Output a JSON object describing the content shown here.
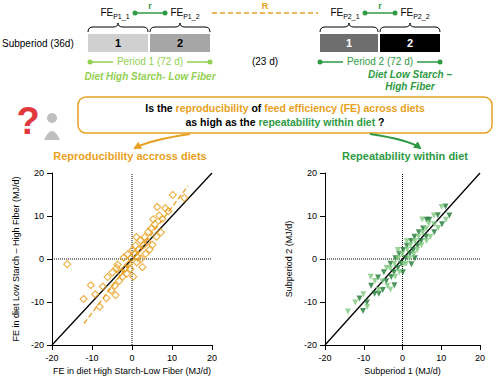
{
  "diagram": {
    "fe_labels": [
      {
        "main": "FE",
        "sub": "P1_1"
      },
      {
        "main": "FE",
        "sub": "P1_2"
      },
      {
        "main": "FE",
        "sub": "P2_1"
      },
      {
        "main": "FE",
        "sub": "P2_2"
      }
    ],
    "within_label": "r",
    "across_label": "R",
    "subperiod_label": "Subperiod (36d)",
    "subperiods": [
      {
        "text": "1",
        "color": "#d0d0d0"
      },
      {
        "text": "2",
        "color": "#a6a6a6"
      },
      {
        "text": "1",
        "color": "#6e6e6e"
      },
      {
        "text": "2",
        "color": "#000000"
      }
    ],
    "period1": {
      "label": "Period 1 (72 d)",
      "diet_lines": [
        "Diet High Starch- Low Fiber"
      ],
      "color": "#92d050"
    },
    "gap": "(23 d)",
    "period2": {
      "label": "Period 2 (72 d)",
      "diet_lines": [
        "Diet Low Starch –",
        "High Fiber"
      ],
      "color": "#2e9a44"
    },
    "question_icon": "?",
    "question_lines": [
      [
        {
          "text": "Is the ",
          "color": "#000000"
        },
        {
          "text": "reproducibility",
          "color": "#e8a020"
        },
        {
          "text": " of ",
          "color": "#000000"
        },
        {
          "text": "feed efficiency (FE) across diets",
          "color": "#e8a020"
        }
      ],
      [
        {
          "text": "as high as the ",
          "color": "#000000"
        },
        {
          "text": "repeatability within diet",
          "color": "#2e9a44"
        },
        {
          "text": " ?",
          "color": "#000000"
        }
      ]
    ],
    "branches": [
      {
        "title": "Reproducibility accross diets",
        "color": "#e8a020"
      },
      {
        "title": "Repeatability within diet",
        "color": "#2e9a44"
      }
    ]
  },
  "chart_data": [
    {
      "type": "scatter",
      "x_label": "FE in diet High Starch-Low Fiber (MJ/d)",
      "y_label": "FE in diet Low Starch – High Fiber (MJ/d)",
      "xlim": [
        -20,
        20
      ],
      "ylim": [
        -20,
        20
      ],
      "xticks": [
        -20,
        -10,
        0,
        10,
        20
      ],
      "yticks": [
        -20,
        -10,
        0,
        10,
        20
      ],
      "grid": false,
      "series": [
        {
          "type": "scatter",
          "marker": "diamond-open",
          "color": "#e8a020",
          "x": [
            -16.2,
            -12.1,
            -10.3,
            -9.2,
            -8.1,
            -7.3,
            -6.4,
            -6.1,
            -5.2,
            -4.9,
            -4.3,
            -4.1,
            -3.6,
            -3.2,
            -2.9,
            -2.4,
            -2.1,
            -1.8,
            -1.3,
            -1.1,
            -0.8,
            -0.4,
            -0.2,
            0.1,
            0.3,
            0.6,
            0.9,
            1.2,
            1.4,
            1.7,
            2.1,
            2.3,
            2.6,
            2.9,
            3.2,
            3.4,
            3.8,
            4.1,
            4.4,
            4.8,
            5.1,
            5.3,
            5.7,
            6.1,
            6.3,
            6.8,
            7.2,
            7.6,
            8.3,
            9.1,
            10.2,
            13.1,
            1.1,
            -3.9
          ],
          "values": [
            -1.2,
            -9.3,
            -6.1,
            -8.2,
            -11.1,
            -6.4,
            -9.1,
            -4.2,
            -7.3,
            -3.1,
            -6.2,
            -8.4,
            -1.3,
            -5.1,
            -3.2,
            -4.1,
            0.3,
            -2.2,
            -3.4,
            1.1,
            -1.2,
            -2.3,
            0.2,
            2.1,
            -4.1,
            1.2,
            3.1,
            -0.8,
            0.4,
            2.2,
            4.3,
            0.1,
            -1.9,
            3.2,
            5.1,
            1.2,
            4.1,
            6.3,
            2.2,
            7.1,
            3.3,
            9.2,
            8.1,
            5.2,
            12.1,
            10.1,
            6.2,
            9.3,
            11.8,
            11.1,
            14.9,
            14.2,
            5.1,
            -2.1
          ]
        },
        {
          "type": "line",
          "line_style": "solid",
          "color": "#000000",
          "x": [
            -20,
            20
          ],
          "values": [
            -20,
            20
          ]
        },
        {
          "type": "line",
          "line_style": "dashed",
          "color": "#e8a020",
          "x": [
            -12,
            14
          ],
          "values": [
            -15,
            17
          ]
        },
        {
          "type": "line",
          "line_style": "dotted",
          "color": "#000000",
          "x": [
            -20,
            20
          ],
          "values": [
            0,
            0
          ]
        },
        {
          "type": "line",
          "line_style": "dotted",
          "color": "#000000",
          "x": [
            0,
            0
          ],
          "values": [
            -20,
            20
          ]
        }
      ]
    },
    {
      "type": "scatter",
      "x_label": "Subperiod 1 (MJ/d)",
      "y_label": "Subperiod 2 (MJ/d)",
      "xlim": [
        -20,
        20
      ],
      "ylim": [
        -20,
        20
      ],
      "xticks": [
        -20,
        -10,
        0,
        10,
        20
      ],
      "yticks": [
        -20,
        -10,
        0,
        10,
        20
      ],
      "grid": false,
      "series": [
        {
          "type": "scatter",
          "marker": "triangle-down",
          "color": "#1e7b34",
          "x": [
            -11.1,
            -9.2,
            -8.1,
            -7.2,
            -6.3,
            -5.1,
            -4.8,
            -4.2,
            -3.1,
            -2.9,
            -2.2,
            -1.8,
            -1.2,
            -0.9,
            -0.3,
            0.2,
            0.8,
            1.1,
            1.9,
            2.2,
            2.8,
            3.1,
            3.9,
            4.2,
            4.8,
            5.3,
            6.1,
            6.9,
            8.2,
            9.1,
            10.2,
            11.1,
            -6.1,
            -10.2,
            0.1,
            2.3,
            6.2,
            -2.1,
            3.2,
            12.1
          ],
          "values": [
            -9.2,
            -10.1,
            -6.2,
            -8.1,
            -4.3,
            -7.2,
            -3.1,
            -5.2,
            -1.1,
            -4.2,
            -3.1,
            0.2,
            -2.1,
            1.2,
            -1.1,
            2.1,
            0.2,
            3.1,
            1.2,
            4.2,
            2.1,
            5.2,
            3.1,
            6.2,
            4.1,
            7.1,
            5.2,
            9.1,
            6.2,
            10.2,
            8.1,
            12.2,
            -8.1,
            -12.1,
            -3.1,
            -1.2,
            9.1,
            -6.1,
            0.2,
            10.1
          ]
        },
        {
          "type": "scatter",
          "marker": "triangle-down",
          "color": "#7dc87d",
          "x": [
            -12.2,
            -10.1,
            -9.1,
            -7.1,
            -6.2,
            -5.2,
            -4.1,
            -3.9,
            -3.2,
            -2.1,
            -1.9,
            -1.1,
            -0.8,
            -0.1,
            0.3,
            1.2,
            0.9,
            2.1,
            1.8,
            3.2,
            2.9,
            4.1,
            3.8,
            5.2,
            4.9,
            6.1,
            7.2,
            6.8,
            8.1,
            9.2,
            10.1,
            -8.2,
            -14.1,
            1.1,
            -3.1,
            5.1,
            11.2,
            -1.2,
            6.2,
            8.2
          ],
          "values": [
            -10.1,
            -8.2,
            -11.1,
            -5.1,
            -7.2,
            -5.2,
            -2.1,
            -6.2,
            -2.2,
            -1.1,
            -4.1,
            0.1,
            -3.1,
            1.1,
            -1.2,
            2.2,
            -1.1,
            3.2,
            0.1,
            4.1,
            1.1,
            5.2,
            2.1,
            6.1,
            3.2,
            7.1,
            5.1,
            8.2,
            10.1,
            7.2,
            12.1,
            -4.1,
            -12.2,
            4.1,
            -7.1,
            9.2,
            9.1,
            2.1,
            4.2,
            8.1
          ]
        },
        {
          "type": "line",
          "line_style": "solid",
          "color": "#000000",
          "x": [
            -20,
            20
          ],
          "values": [
            -20,
            20
          ]
        },
        {
          "type": "line",
          "line_style": "dotted",
          "color": "#000000",
          "x": [
            -20,
            20
          ],
          "values": [
            0,
            0
          ]
        },
        {
          "type": "line",
          "line_style": "dotted",
          "color": "#000000",
          "x": [
            0,
            0
          ],
          "values": [
            -20,
            20
          ]
        }
      ]
    }
  ]
}
